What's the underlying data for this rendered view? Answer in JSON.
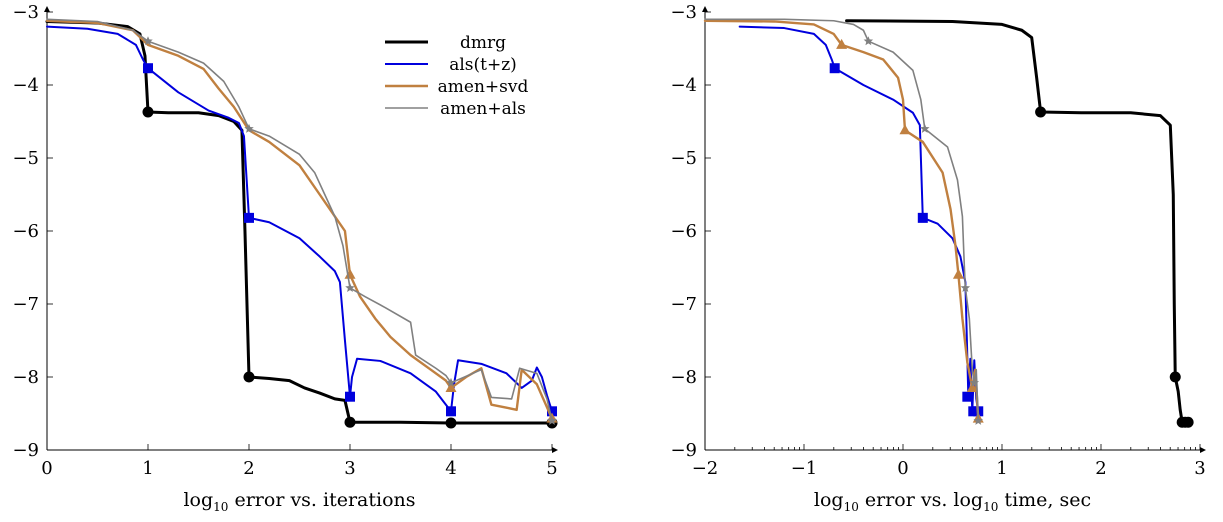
{
  "chart_data": [
    {
      "type": "line",
      "xlabel_base": "log",
      "xlabel_sub": "10",
      "xlabel_rest": " error vs. iterations",
      "xlim": [
        0,
        5
      ],
      "ylim": [
        -9,
        -3
      ],
      "xticks": [
        0,
        1,
        2,
        3,
        4,
        5
      ],
      "yticks": [
        -9,
        -8,
        -7,
        -6,
        -5,
        -4,
        -3
      ],
      "xtick_labels": [
        "0",
        "1",
        "2",
        "3",
        "4",
        "5"
      ],
      "ytick_labels": [
        "−9",
        "−8",
        "−7",
        "−6",
        "−5",
        "−4",
        "−3"
      ],
      "legend_position": "top-right",
      "series": [
        {
          "name": "dmrg",
          "color": "#000000",
          "width": 3,
          "marker": "circle",
          "points": [
            [
              0,
              -3.13
            ],
            [
              0.5,
              -3.15
            ],
            [
              0.8,
              -3.2
            ],
            [
              0.92,
              -3.3
            ],
            [
              0.97,
              -3.6
            ],
            [
              1.0,
              -4.37
            ],
            [
              1.2,
              -4.38
            ],
            [
              1.5,
              -4.38
            ],
            [
              1.7,
              -4.42
            ],
            [
              1.85,
              -4.5
            ],
            [
              1.93,
              -4.62
            ],
            [
              1.96,
              -6.0
            ],
            [
              2.0,
              -8.0
            ],
            [
              2.2,
              -8.02
            ],
            [
              2.4,
              -8.05
            ],
            [
              2.55,
              -8.15
            ],
            [
              2.7,
              -8.22
            ],
            [
              2.85,
              -8.3
            ],
            [
              2.95,
              -8.32
            ],
            [
              3.0,
              -8.62
            ],
            [
              3.5,
              -8.62
            ],
            [
              4.0,
              -8.63
            ],
            [
              4.5,
              -8.63
            ],
            [
              5.0,
              -8.63
            ]
          ],
          "marker_points": [
            [
              1,
              -4.37
            ],
            [
              2,
              -8.0
            ],
            [
              3,
              -8.62
            ],
            [
              4,
              -8.63
            ],
            [
              5,
              -8.63
            ]
          ]
        },
        {
          "name": "als(t+z)",
          "color": "#0000dd",
          "width": 2,
          "marker": "square",
          "points": [
            [
              0,
              -3.2
            ],
            [
              0.4,
              -3.23
            ],
            [
              0.7,
              -3.3
            ],
            [
              0.88,
              -3.45
            ],
            [
              0.95,
              -3.65
            ],
            [
              1.0,
              -3.77
            ],
            [
              1.3,
              -4.1
            ],
            [
              1.6,
              -4.35
            ],
            [
              1.8,
              -4.45
            ],
            [
              1.9,
              -4.52
            ],
            [
              1.95,
              -4.7
            ],
            [
              2.0,
              -5.82
            ],
            [
              2.2,
              -5.88
            ],
            [
              2.5,
              -6.1
            ],
            [
              2.7,
              -6.35
            ],
            [
              2.85,
              -6.55
            ],
            [
              2.9,
              -6.7
            ],
            [
              2.95,
              -7.5
            ],
            [
              3.0,
              -8.27
            ],
            [
              3.02,
              -8.0
            ],
            [
              3.07,
              -7.75
            ],
            [
              3.3,
              -7.78
            ],
            [
              3.6,
              -7.95
            ],
            [
              3.85,
              -8.2
            ],
            [
              3.95,
              -8.38
            ],
            [
              4.0,
              -8.47
            ],
            [
              4.03,
              -8.1
            ],
            [
              4.07,
              -7.77
            ],
            [
              4.3,
              -7.82
            ],
            [
              4.55,
              -7.95
            ],
            [
              4.7,
              -8.15
            ],
            [
              4.8,
              -8.05
            ],
            [
              4.85,
              -7.87
            ],
            [
              4.9,
              -8.0
            ],
            [
              4.95,
              -8.25
            ],
            [
              5.0,
              -8.47
            ]
          ],
          "marker_points": [
            [
              1,
              -3.77
            ],
            [
              2,
              -5.82
            ],
            [
              3,
              -8.27
            ],
            [
              4,
              -8.47
            ],
            [
              5,
              -8.47
            ]
          ]
        },
        {
          "name": "amen+svd",
          "color": "#c08040",
          "width": 2.4,
          "marker": "triangle",
          "points": [
            [
              0,
              -3.12
            ],
            [
              0.5,
              -3.15
            ],
            [
              0.85,
              -3.25
            ],
            [
              1.0,
              -3.45
            ],
            [
              1.3,
              -3.6
            ],
            [
              1.55,
              -3.78
            ],
            [
              1.7,
              -4.05
            ],
            [
              1.85,
              -4.3
            ],
            [
              2.0,
              -4.62
            ],
            [
              2.2,
              -4.78
            ],
            [
              2.5,
              -5.1
            ],
            [
              2.7,
              -5.5
            ],
            [
              2.85,
              -5.8
            ],
            [
              2.95,
              -6.0
            ],
            [
              3.0,
              -6.6
            ],
            [
              3.1,
              -6.9
            ],
            [
              3.25,
              -7.2
            ],
            [
              3.4,
              -7.45
            ],
            [
              3.6,
              -7.7
            ],
            [
              3.8,
              -7.9
            ],
            [
              3.95,
              -8.05
            ],
            [
              4.0,
              -8.15
            ],
            [
              4.15,
              -8.0
            ],
            [
              4.3,
              -7.88
            ],
            [
              4.4,
              -8.38
            ],
            [
              4.55,
              -8.42
            ],
            [
              4.65,
              -8.45
            ],
            [
              4.7,
              -7.9
            ],
            [
              4.85,
              -8.1
            ],
            [
              5.0,
              -8.57
            ]
          ],
          "marker_points": [
            [
              3,
              -6.6
            ],
            [
              4,
              -8.15
            ],
            [
              5,
              -8.57
            ]
          ]
        },
        {
          "name": "amen+als",
          "color": "#808080",
          "width": 1.6,
          "marker": "star",
          "points": [
            [
              0,
              -3.1
            ],
            [
              0.5,
              -3.13
            ],
            [
              0.85,
              -3.25
            ],
            [
              1.0,
              -3.4
            ],
            [
              1.3,
              -3.55
            ],
            [
              1.55,
              -3.7
            ],
            [
              1.75,
              -3.95
            ],
            [
              1.9,
              -4.3
            ],
            [
              2.0,
              -4.6
            ],
            [
              2.2,
              -4.7
            ],
            [
              2.5,
              -4.95
            ],
            [
              2.65,
              -5.2
            ],
            [
              2.75,
              -5.5
            ],
            [
              2.85,
              -5.8
            ],
            [
              2.93,
              -6.2
            ],
            [
              3.0,
              -6.78
            ],
            [
              3.15,
              -6.9
            ],
            [
              3.35,
              -7.05
            ],
            [
              3.6,
              -7.25
            ],
            [
              3.65,
              -7.7
            ],
            [
              3.85,
              -7.88
            ],
            [
              3.95,
              -7.98
            ],
            [
              4.0,
              -8.08
            ],
            [
              4.3,
              -7.9
            ],
            [
              4.4,
              -8.28
            ],
            [
              4.6,
              -8.3
            ],
            [
              4.68,
              -7.88
            ],
            [
              4.85,
              -7.95
            ],
            [
              4.95,
              -8.3
            ],
            [
              5.0,
              -8.6
            ]
          ],
          "marker_points": [
            [
              1,
              -3.4
            ],
            [
              2,
              -4.6
            ],
            [
              3,
              -6.78
            ],
            [
              4,
              -8.08
            ],
            [
              5,
              -8.6
            ]
          ]
        }
      ]
    },
    {
      "type": "line",
      "xlabel_base": "log",
      "xlabel_sub": "10",
      "xlabel_rest": " error vs. log",
      "xlabel_sub2": "10",
      "xlabel_rest2": " time, sec",
      "xlim": [
        -2,
        3
      ],
      "ylim": [
        -9,
        -3
      ],
      "xticks": [
        -2,
        -1,
        0,
        1,
        2,
        3
      ],
      "yticks": [
        -9,
        -8,
        -7,
        -6,
        -5,
        -4,
        -3
      ],
      "xtick_labels": [
        "−2",
        "−1",
        "0",
        "1",
        "2",
        "3"
      ],
      "ytick_labels": [
        "−9",
        "−8",
        "−7",
        "−6",
        "−5",
        "−4",
        "−3"
      ],
      "series": [
        {
          "name": "dmrg",
          "color": "#000000",
          "width": 3,
          "marker": "circle",
          "points": [
            [
              -0.57,
              -3.12
            ],
            [
              0.5,
              -3.13
            ],
            [
              1.0,
              -3.17
            ],
            [
              1.2,
              -3.25
            ],
            [
              1.3,
              -3.35
            ],
            [
              1.35,
              -3.9
            ],
            [
              1.39,
              -4.37
            ],
            [
              1.8,
              -4.38
            ],
            [
              2.3,
              -4.38
            ],
            [
              2.6,
              -4.42
            ],
            [
              2.7,
              -4.55
            ],
            [
              2.73,
              -5.5
            ],
            [
              2.74,
              -7.0
            ],
            [
              2.75,
              -8.0
            ],
            [
              2.78,
              -8.2
            ],
            [
              2.8,
              -8.45
            ],
            [
              2.82,
              -8.62
            ],
            [
              2.86,
              -8.62
            ],
            [
              2.88,
              -8.62
            ]
          ],
          "marker_points": [
            [
              1.39,
              -4.37
            ],
            [
              2.75,
              -8.0
            ],
            [
              2.82,
              -8.62
            ],
            [
              2.85,
              -8.62
            ],
            [
              2.88,
              -8.62
            ]
          ]
        },
        {
          "name": "als(t+z)",
          "color": "#0000dd",
          "width": 2,
          "marker": "square",
          "points": [
            [
              -1.65,
              -3.2
            ],
            [
              -1.2,
              -3.22
            ],
            [
              -0.9,
              -3.3
            ],
            [
              -0.78,
              -3.45
            ],
            [
              -0.72,
              -3.65
            ],
            [
              -0.69,
              -3.77
            ],
            [
              -0.4,
              -4.0
            ],
            [
              -0.1,
              -4.2
            ],
            [
              0.1,
              -4.38
            ],
            [
              0.17,
              -4.55
            ],
            [
              0.2,
              -5.82
            ],
            [
              0.35,
              -5.9
            ],
            [
              0.5,
              -6.1
            ],
            [
              0.58,
              -6.35
            ],
            [
              0.63,
              -6.7
            ],
            [
              0.66,
              -8.27
            ],
            [
              0.68,
              -7.75
            ],
            [
              0.7,
              -8.47
            ],
            [
              0.72,
              -7.77
            ],
            [
              0.74,
              -8.3
            ],
            [
              0.76,
              -8.47
            ]
          ],
          "marker_points": [
            [
              -0.69,
              -3.77
            ],
            [
              0.2,
              -5.82
            ],
            [
              0.65,
              -8.27
            ],
            [
              0.71,
              -8.47
            ],
            [
              0.76,
              -8.47
            ]
          ]
        },
        {
          "name": "amen+svd",
          "color": "#c08040",
          "width": 2.4,
          "marker": "triangle",
          "points": [
            [
              -2.0,
              -3.12
            ],
            [
              -1.3,
              -3.13
            ],
            [
              -0.9,
              -3.17
            ],
            [
              -0.7,
              -3.3
            ],
            [
              -0.62,
              -3.45
            ],
            [
              -0.4,
              -3.55
            ],
            [
              -0.2,
              -3.65
            ],
            [
              -0.05,
              -3.9
            ],
            [
              0.0,
              -4.2
            ],
            [
              0.02,
              -4.62
            ],
            [
              0.2,
              -4.78
            ],
            [
              0.4,
              -5.2
            ],
            [
              0.48,
              -5.7
            ],
            [
              0.53,
              -6.2
            ],
            [
              0.56,
              -6.6
            ],
            [
              0.6,
              -7.2
            ],
            [
              0.65,
              -7.8
            ],
            [
              0.7,
              -8.15
            ],
            [
              0.73,
              -7.9
            ],
            [
              0.76,
              -8.57
            ]
          ],
          "marker_points": [
            [
              -0.62,
              -3.45
            ],
            [
              0.02,
              -4.62
            ],
            [
              0.56,
              -6.6
            ],
            [
              0.7,
              -8.15
            ],
            [
              0.76,
              -8.57
            ]
          ]
        },
        {
          "name": "amen+als",
          "color": "#808080",
          "width": 1.6,
          "marker": "star",
          "points": [
            [
              -2.0,
              -3.1
            ],
            [
              -1.2,
              -3.1
            ],
            [
              -0.7,
              -3.12
            ],
            [
              -0.5,
              -3.17
            ],
            [
              -0.4,
              -3.25
            ],
            [
              -0.35,
              -3.4
            ],
            [
              -0.1,
              -3.55
            ],
            [
              0.1,
              -3.8
            ],
            [
              0.18,
              -4.2
            ],
            [
              0.22,
              -4.6
            ],
            [
              0.45,
              -4.85
            ],
            [
              0.55,
              -5.3
            ],
            [
              0.6,
              -5.8
            ],
            [
              0.62,
              -6.5
            ],
            [
              0.63,
              -6.78
            ],
            [
              0.67,
              -7.2
            ],
            [
              0.7,
              -7.9
            ],
            [
              0.72,
              -8.08
            ],
            [
              0.74,
              -7.9
            ],
            [
              0.76,
              -8.6
            ]
          ],
          "marker_points": [
            [
              -0.35,
              -3.4
            ],
            [
              0.22,
              -4.6
            ],
            [
              0.63,
              -6.78
            ],
            [
              0.72,
              -8.08
            ],
            [
              0.76,
              -8.6
            ]
          ]
        }
      ]
    }
  ],
  "legend": {
    "items": [
      {
        "label": "dmrg",
        "color": "#000000",
        "width": 3
      },
      {
        "label": "als(t+z)",
        "color": "#0000dd",
        "width": 2
      },
      {
        "label": "amen+svd",
        "color": "#c08040",
        "width": 2.4
      },
      {
        "label": "amen+als",
        "color": "#808080",
        "width": 1.6
      }
    ]
  }
}
